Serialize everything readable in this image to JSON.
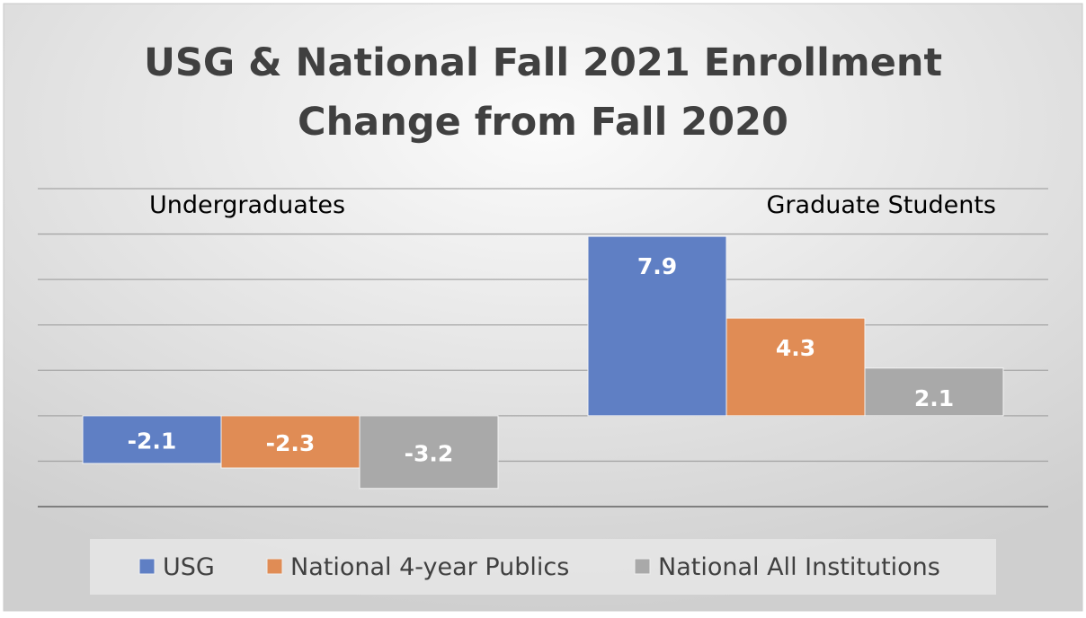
{
  "chart_data": {
    "type": "bar",
    "title": [
      "USG & National Fall 2021 Enrollment",
      "Change from Fall 2020"
    ],
    "categories": [
      "Undergraduates",
      "Graduate Students"
    ],
    "series": [
      {
        "name": "USG",
        "values": [
          -2.1,
          7.9
        ],
        "color": "#5f7fc4"
      },
      {
        "name": "National 4-year Publics",
        "values": [
          -2.3,
          4.3
        ],
        "color": "#e08c55"
      },
      {
        "name": "National All Institutions",
        "values": [
          -3.2,
          2.1
        ],
        "color": "#a9a9a9"
      }
    ],
    "xlabel": "",
    "ylabel": "",
    "ylim": [
      -4,
      10
    ],
    "grid": true,
    "legend": "bottom",
    "data_labels": true
  }
}
